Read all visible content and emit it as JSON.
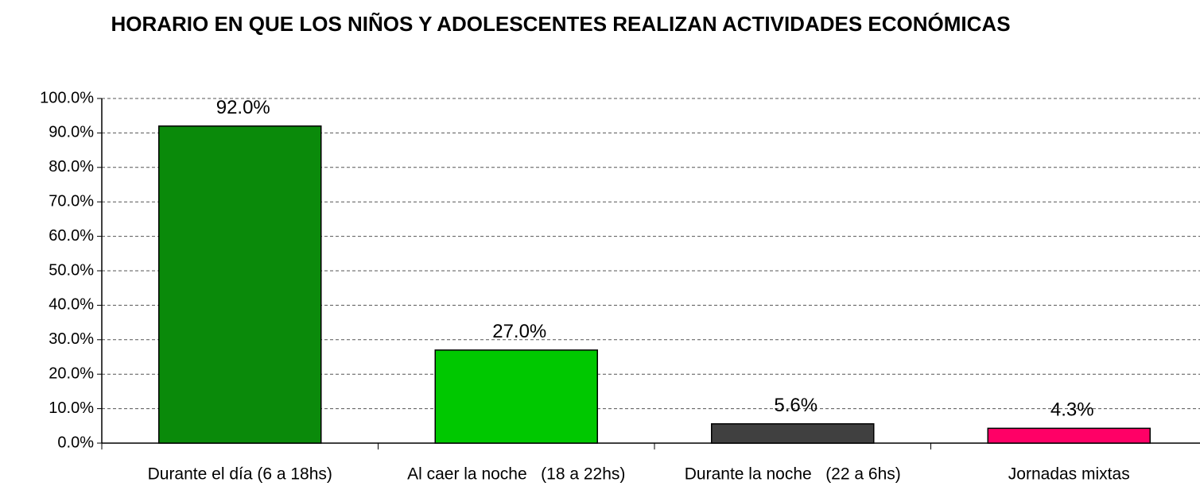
{
  "chart_data": {
    "type": "bar",
    "title": "HORARIO EN QUE LOS NIÑOS Y ADOLESCENTES REALIZAN ACTIVIDADES ECONÓMICAS",
    "categories": [
      "Durante el día (6 a 18hs)",
      "Al caer la noche   (18 a 22hs)",
      "Durante la noche   (22 a 6hs)",
      "Jornadas mixtas"
    ],
    "values": [
      92.0,
      27.0,
      5.6,
      4.3
    ],
    "value_labels": [
      "92.0%",
      "27.0%",
      "5.6%",
      "4.3%"
    ],
    "colors": [
      "#0a8a0a",
      "#00c800",
      "#404040",
      "#ff0066"
    ],
    "ylim": [
      0,
      100
    ],
    "yticks": [
      {
        "value": 0,
        "label": "0.0%"
      },
      {
        "value": 10,
        "label": "10.0%"
      },
      {
        "value": 20,
        "label": "20.0%"
      },
      {
        "value": 30,
        "label": "30.0%"
      },
      {
        "value": 40,
        "label": "40.0%"
      },
      {
        "value": 50,
        "label": "50.0%"
      },
      {
        "value": 60,
        "label": "60.0%"
      },
      {
        "value": 70,
        "label": "70.0%"
      },
      {
        "value": 80,
        "label": "80.0%"
      },
      {
        "value": 90,
        "label": "90.0%"
      },
      {
        "value": 100,
        "label": "100.0%"
      }
    ],
    "grid": true
  }
}
